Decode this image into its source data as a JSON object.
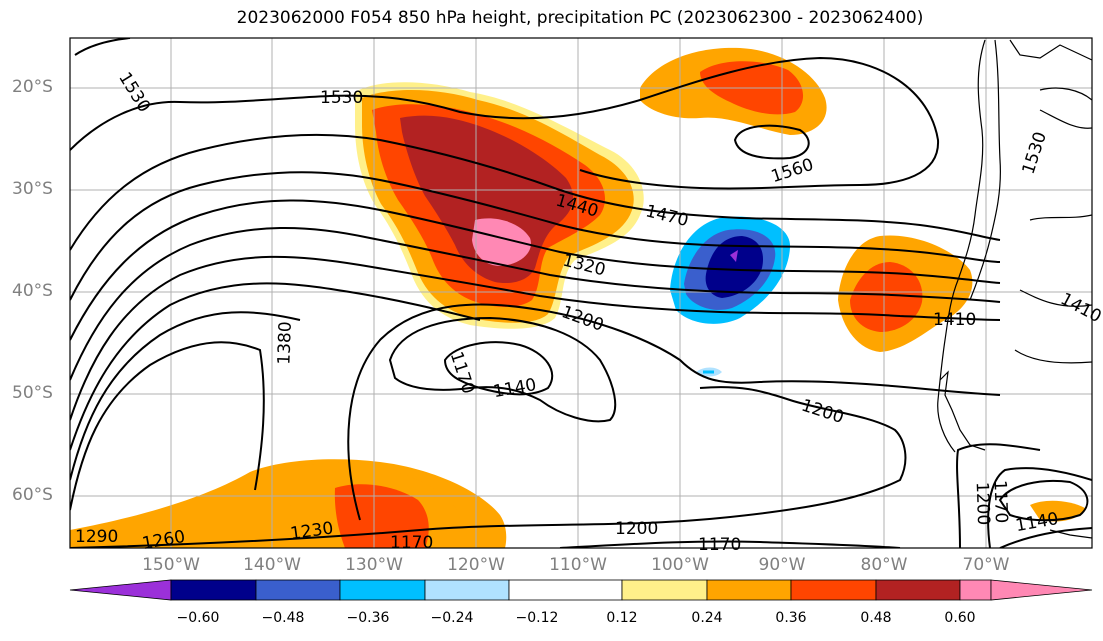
{
  "title": "2023062000 F054 850 hPa height, precipitation PC (2023062300 - 2023062400)",
  "lat_labels": [
    "20°S",
    "30°S",
    "40°S",
    "50°S",
    "60°S"
  ],
  "lon_labels": [
    "150°W",
    "140°W",
    "130°W",
    "120°W",
    "110°W",
    "100°W",
    "90°W",
    "80°W",
    "70°W"
  ],
  "contour_labels": [
    {
      "text": "1530"
    },
    {
      "text": "1530"
    },
    {
      "text": "1560"
    },
    {
      "text": "1530"
    },
    {
      "text": "1470"
    },
    {
      "text": "1440"
    },
    {
      "text": "1320"
    },
    {
      "text": "1200"
    },
    {
      "text": "1380"
    },
    {
      "text": "1170"
    },
    {
      "text": "1140"
    },
    {
      "text": "1200"
    },
    {
      "text": "1410"
    },
    {
      "text": "1410"
    },
    {
      "text": "1290"
    },
    {
      "text": "1260"
    },
    {
      "text": "1230"
    },
    {
      "text": "1170"
    },
    {
      "text": "1200"
    },
    {
      "text": "1170"
    },
    {
      "text": "1200"
    },
    {
      "text": "1170"
    },
    {
      "text": "1140"
    }
  ],
  "colorbar": {
    "ticks": [
      "−0.60",
      "−0.48",
      "−0.36",
      "−0.24",
      "−0.12",
      "0.12",
      "0.24",
      "0.36",
      "0.48",
      "0.60"
    ],
    "colors": [
      "#9b30d9",
      "#00008b",
      "#3a5fcd",
      "#00bfff",
      "#b0e2ff",
      "#ffffff",
      "#fff08a",
      "#ffa500",
      "#ff4500",
      "#b22222",
      "#ff88b4"
    ]
  }
}
